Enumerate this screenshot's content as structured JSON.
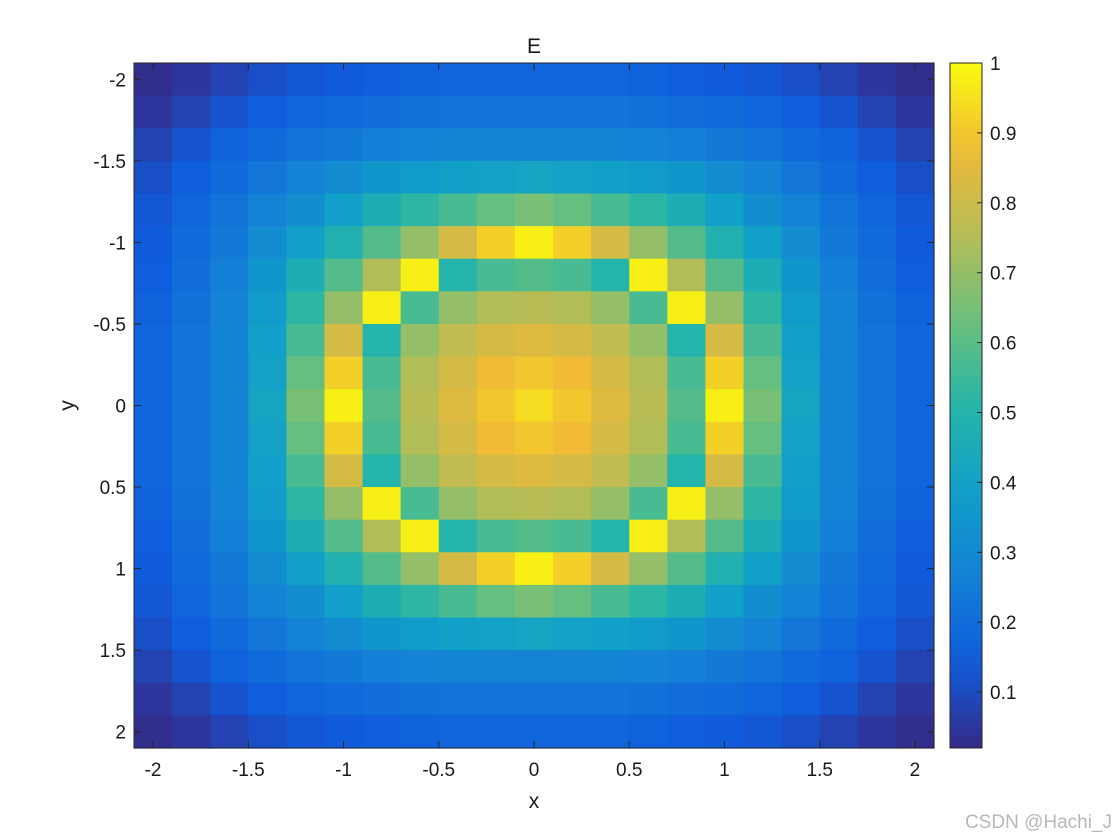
{
  "chart_data": {
    "type": "heatmap",
    "title": "E",
    "xlabel": "x",
    "ylabel": "y",
    "x": [
      -2.0,
      -1.8,
      -1.6,
      -1.4,
      -1.2,
      -1.0,
      -0.8,
      -0.6,
      -0.4,
      -0.2,
      0.0,
      0.2,
      0.4,
      0.6,
      0.8,
      1.0,
      1.2,
      1.4,
      1.6,
      1.8,
      2.0
    ],
    "y": [
      -2.0,
      -1.8,
      -1.6,
      -1.4,
      -1.2,
      -1.0,
      -0.8,
      -0.6,
      -0.4,
      -0.2,
      0.0,
      0.2,
      0.4,
      0.6,
      0.8,
      1.0,
      1.2,
      1.4,
      1.6,
      1.8,
      2.0
    ],
    "xlim": [
      -2.1,
      2.1
    ],
    "ylim": [
      -2.1,
      2.1
    ],
    "y_direction": "reverse",
    "x_ticks": [
      -2,
      -1.5,
      -1,
      -0.5,
      0,
      0.5,
      1,
      1.5,
      2
    ],
    "y_ticks": [
      -2,
      -1.5,
      -1,
      -0.5,
      0,
      0.5,
      1,
      1.5,
      2
    ],
    "colorbar": {
      "colormap": "parula",
      "range": [
        0.02,
        1.0
      ],
      "ticks": [
        0.1,
        0.2,
        0.3,
        0.4,
        0.5,
        0.6,
        0.7,
        0.8,
        0.9,
        1
      ]
    },
    "grid": false,
    "z": [
      [
        0.03,
        0.05,
        0.08,
        0.11,
        0.13,
        0.14,
        0.15,
        0.16,
        0.17,
        0.17,
        0.17,
        0.17,
        0.17,
        0.16,
        0.15,
        0.14,
        0.13,
        0.11,
        0.08,
        0.05,
        0.03
      ],
      [
        0.05,
        0.08,
        0.12,
        0.15,
        0.17,
        0.19,
        0.2,
        0.21,
        0.22,
        0.22,
        0.22,
        0.22,
        0.22,
        0.21,
        0.2,
        0.19,
        0.17,
        0.15,
        0.12,
        0.08,
        0.05
      ],
      [
        0.08,
        0.12,
        0.16,
        0.19,
        0.22,
        0.24,
        0.26,
        0.27,
        0.28,
        0.28,
        0.28,
        0.28,
        0.28,
        0.27,
        0.26,
        0.24,
        0.22,
        0.19,
        0.16,
        0.12,
        0.08
      ],
      [
        0.11,
        0.15,
        0.19,
        0.23,
        0.27,
        0.31,
        0.35,
        0.37,
        0.39,
        0.4,
        0.41,
        0.4,
        0.39,
        0.37,
        0.35,
        0.31,
        0.27,
        0.23,
        0.19,
        0.15,
        0.11
      ],
      [
        0.13,
        0.17,
        0.22,
        0.27,
        0.32,
        0.39,
        0.46,
        0.52,
        0.57,
        0.62,
        0.65,
        0.62,
        0.57,
        0.52,
        0.46,
        0.39,
        0.32,
        0.27,
        0.22,
        0.17,
        0.13
      ],
      [
        0.14,
        0.19,
        0.24,
        0.31,
        0.39,
        0.48,
        0.59,
        0.7,
        0.82,
        0.92,
        0.98,
        0.92,
        0.82,
        0.7,
        0.59,
        0.48,
        0.39,
        0.31,
        0.24,
        0.19,
        0.14
      ],
      [
        0.15,
        0.2,
        0.26,
        0.35,
        0.46,
        0.59,
        0.75,
        0.98,
        0.5,
        0.57,
        0.59,
        0.57,
        0.5,
        0.98,
        0.75,
        0.59,
        0.46,
        0.35,
        0.26,
        0.2,
        0.15
      ],
      [
        0.16,
        0.21,
        0.27,
        0.37,
        0.52,
        0.7,
        0.98,
        0.57,
        0.7,
        0.75,
        0.76,
        0.75,
        0.7,
        0.57,
        0.98,
        0.7,
        0.52,
        0.37,
        0.27,
        0.21,
        0.16
      ],
      [
        0.17,
        0.22,
        0.28,
        0.39,
        0.57,
        0.82,
        0.5,
        0.7,
        0.78,
        0.82,
        0.84,
        0.82,
        0.78,
        0.7,
        0.5,
        0.82,
        0.57,
        0.39,
        0.28,
        0.22,
        0.17
      ],
      [
        0.17,
        0.22,
        0.28,
        0.4,
        0.62,
        0.92,
        0.57,
        0.75,
        0.82,
        0.88,
        0.9,
        0.88,
        0.82,
        0.75,
        0.57,
        0.92,
        0.62,
        0.4,
        0.28,
        0.22,
        0.17
      ],
      [
        0.17,
        0.22,
        0.28,
        0.41,
        0.65,
        0.98,
        0.59,
        0.76,
        0.84,
        0.9,
        0.94,
        0.9,
        0.84,
        0.76,
        0.59,
        0.98,
        0.65,
        0.41,
        0.28,
        0.22,
        0.17
      ],
      [
        0.17,
        0.22,
        0.28,
        0.4,
        0.62,
        0.92,
        0.57,
        0.75,
        0.82,
        0.88,
        0.9,
        0.88,
        0.82,
        0.75,
        0.57,
        0.92,
        0.62,
        0.4,
        0.28,
        0.22,
        0.17
      ],
      [
        0.17,
        0.22,
        0.28,
        0.39,
        0.57,
        0.82,
        0.5,
        0.7,
        0.78,
        0.82,
        0.84,
        0.82,
        0.78,
        0.7,
        0.5,
        0.82,
        0.57,
        0.39,
        0.28,
        0.22,
        0.17
      ],
      [
        0.16,
        0.21,
        0.27,
        0.37,
        0.52,
        0.7,
        0.98,
        0.57,
        0.7,
        0.75,
        0.76,
        0.75,
        0.7,
        0.57,
        0.98,
        0.7,
        0.52,
        0.37,
        0.27,
        0.21,
        0.16
      ],
      [
        0.15,
        0.2,
        0.26,
        0.35,
        0.46,
        0.59,
        0.75,
        0.98,
        0.5,
        0.57,
        0.59,
        0.57,
        0.5,
        0.98,
        0.75,
        0.59,
        0.46,
        0.35,
        0.26,
        0.2,
        0.15
      ],
      [
        0.14,
        0.19,
        0.24,
        0.31,
        0.39,
        0.48,
        0.59,
        0.7,
        0.82,
        0.92,
        0.98,
        0.92,
        0.82,
        0.7,
        0.59,
        0.48,
        0.39,
        0.31,
        0.24,
        0.19,
        0.14
      ],
      [
        0.13,
        0.17,
        0.22,
        0.27,
        0.32,
        0.39,
        0.46,
        0.52,
        0.57,
        0.62,
        0.65,
        0.62,
        0.57,
        0.52,
        0.46,
        0.39,
        0.32,
        0.27,
        0.22,
        0.17,
        0.13
      ],
      [
        0.11,
        0.15,
        0.19,
        0.23,
        0.27,
        0.31,
        0.35,
        0.37,
        0.39,
        0.4,
        0.41,
        0.4,
        0.39,
        0.37,
        0.35,
        0.31,
        0.27,
        0.23,
        0.19,
        0.15,
        0.11
      ],
      [
        0.08,
        0.12,
        0.16,
        0.19,
        0.22,
        0.24,
        0.26,
        0.27,
        0.28,
        0.28,
        0.28,
        0.28,
        0.28,
        0.27,
        0.26,
        0.24,
        0.22,
        0.19,
        0.16,
        0.12,
        0.08
      ],
      [
        0.05,
        0.08,
        0.12,
        0.15,
        0.17,
        0.19,
        0.2,
        0.21,
        0.22,
        0.22,
        0.22,
        0.22,
        0.22,
        0.21,
        0.2,
        0.19,
        0.17,
        0.15,
        0.12,
        0.08,
        0.05
      ],
      [
        0.03,
        0.05,
        0.08,
        0.11,
        0.13,
        0.14,
        0.15,
        0.16,
        0.17,
        0.17,
        0.17,
        0.17,
        0.17,
        0.16,
        0.15,
        0.14,
        0.13,
        0.11,
        0.08,
        0.05,
        0.03
      ]
    ]
  },
  "watermark": "CSDN @Hachi_J"
}
